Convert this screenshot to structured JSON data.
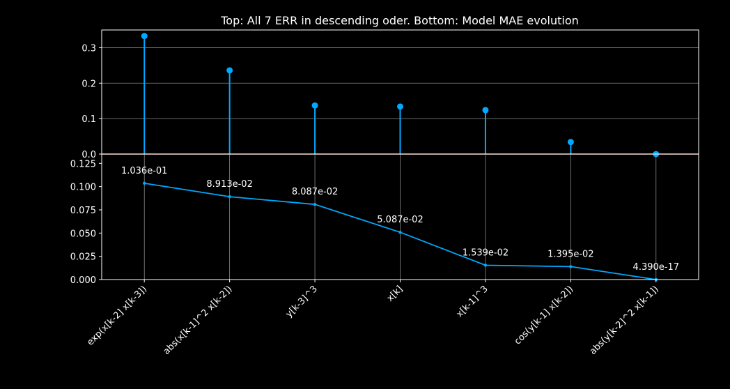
{
  "title": "Top: All 7 ERR in descending oder. Bottom: Model MAE evolution",
  "colors": {
    "background": "#000000",
    "series": "#00a8ff",
    "baseline": "#f4a582",
    "grid": "#8c8c8c",
    "text": "#ffffff"
  },
  "chart_data": [
    {
      "type": "stem",
      "panel": "top",
      "categories": [
        "exp(x[k-2] x[k-3])",
        "abs(x[k-1]^2 x[k-2])",
        "y[k-3]^3",
        "x[k]",
        "x[k-1]^3",
        "cos(y[k-1] x[k-2])",
        "abs(y[k-2]^2 x[k-1])"
      ],
      "values": [
        0.333,
        0.236,
        0.137,
        0.134,
        0.124,
        0.034,
        0.0
      ],
      "ylim": [
        0,
        0.35
      ],
      "yticks": [
        "0.0",
        "0.1",
        "0.2",
        "0.3"
      ],
      "grid": "horizontal"
    },
    {
      "type": "line",
      "panel": "bottom",
      "categories": [
        "exp(x[k-2] x[k-3])",
        "abs(x[k-1]^2 x[k-2])",
        "y[k-3]^3",
        "x[k]",
        "x[k-1]^3",
        "cos(y[k-1] x[k-2])",
        "abs(y[k-2]^2 x[k-1])"
      ],
      "values": [
        0.1036,
        0.08913,
        0.08087,
        0.05087,
        0.01539,
        0.01395,
        4.39e-17
      ],
      "data_labels": [
        "1.036e-01",
        "8.913e-02",
        "8.087e-02",
        "5.087e-02",
        "1.539e-02",
        "1.395e-02",
        "4.390e-17"
      ],
      "ylim": [
        0,
        0.135
      ],
      "yticks": [
        "0.000",
        "0.025",
        "0.050",
        "0.075",
        "0.100",
        "0.125"
      ],
      "grid": "vertical"
    }
  ]
}
